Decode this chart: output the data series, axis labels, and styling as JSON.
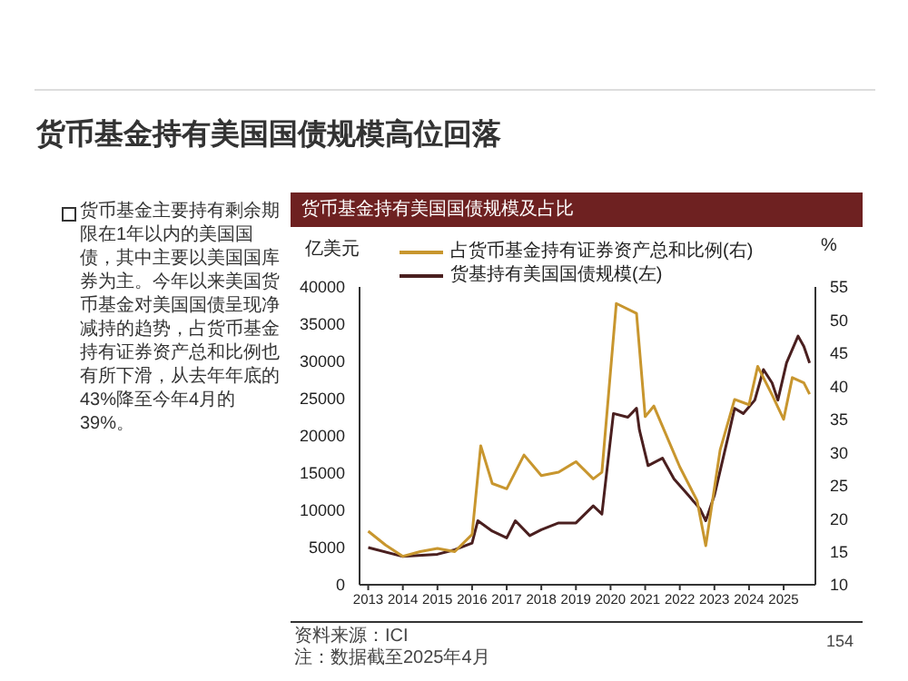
{
  "chart_data": {
    "type": "line",
    "title": "货币基金持有美国国债规模高位回落",
    "subtitle": "货币基金持有美国国债规模及占比",
    "ylabel": "亿美元",
    "y2label": "%",
    "annotations": [
      "货币基金主要持有剩余期限在1年以内的美国国债，其中主要以美国国库券为主。今年以来美国货币基金对美国国债呈现净减持的趋势，占货币基金持有证券资产总和比例也有所下滑，从去年年底的43%降至今年4月的39%。",
      "资料来源：ICI",
      "注：数据截至2025年4月",
      "154"
    ],
    "xlim": [
      "2012-10",
      "2025-12"
    ],
    "xticks": [
      "2013",
      "2014",
      "2015",
      "2016",
      "2017",
      "2018",
      "2019",
      "2020",
      "2021",
      "2022",
      "2023",
      "2024",
      "2025"
    ],
    "ylim": [
      0,
      40000
    ],
    "yticks": [
      0,
      5000,
      10000,
      15000,
      20000,
      25000,
      30000,
      35000,
      40000
    ],
    "y2lim": [
      10,
      55
    ],
    "y2ticks": [
      10,
      15,
      20,
      25,
      30,
      35,
      40,
      45,
      50,
      55
    ],
    "legend": "top",
    "grid": false,
    "marker": "none",
    "line_style": "solid",
    "series": [
      {
        "name": "货基持有美国国债规模(左)",
        "color": "#4a1f1f",
        "x": [
          "2013-01",
          "2014-01",
          "2015-01",
          "2015-07",
          "2016-01",
          "2016-03",
          "2016-08",
          "2017-01",
          "2017-04",
          "2017-09",
          "2018-01",
          "2018-07",
          "2019-01",
          "2019-07",
          "2019-10",
          "2020-02",
          "2020-07",
          "2020-10",
          "2020-11",
          "2021-02",
          "2021-07",
          "2021-11",
          "2022-04",
          "2022-08",
          "2022-10",
          "2023-01",
          "2023-06",
          "2023-08",
          "2023-11",
          "2024-03",
          "2024-06",
          "2024-09",
          "2024-11",
          "2025-02",
          "2025-06",
          "2025-08",
          "2025-10"
        ],
        "values": [
          5000,
          3800,
          4100,
          4700,
          5600,
          8600,
          7200,
          6300,
          8600,
          6600,
          7400,
          8300,
          8300,
          10600,
          9500,
          23000,
          22500,
          23700,
          20800,
          16000,
          17000,
          14200,
          12000,
          10200,
          8600,
          12000,
          20300,
          23700,
          23000,
          24800,
          28900,
          27100,
          24800,
          29800,
          33400,
          32000,
          29800
        ]
      },
      {
        "name": "占货币基金持有证券资产总和比例(右)",
        "color": "#c8962e",
        "axis": "y2",
        "x": [
          "2013-01",
          "2013-07",
          "2014-01",
          "2014-07",
          "2015-01",
          "2015-07",
          "2016-01",
          "2016-04",
          "2016-08",
          "2017-01",
          "2017-07",
          "2018-01",
          "2018-07",
          "2019-01",
          "2019-07",
          "2019-10",
          "2020-03",
          "2020-10",
          "2021-01",
          "2021-04",
          "2022-01",
          "2022-07",
          "2022-10",
          "2023-03",
          "2023-08",
          "2024-01",
          "2024-04",
          "2024-09",
          "2025-01",
          "2025-04",
          "2025-08",
          "2025-10"
        ],
        "values": [
          18.1,
          16,
          14.3,
          15,
          15.5,
          15,
          17.6,
          31,
          25.3,
          24.5,
          29.6,
          26.5,
          27,
          28.6,
          26,
          27,
          52.5,
          51,
          35.4,
          37,
          27.8,
          22.7,
          15.9,
          30.4,
          38,
          37.2,
          43,
          38.7,
          35,
          41.3,
          40.5,
          38.8
        ]
      }
    ]
  }
}
